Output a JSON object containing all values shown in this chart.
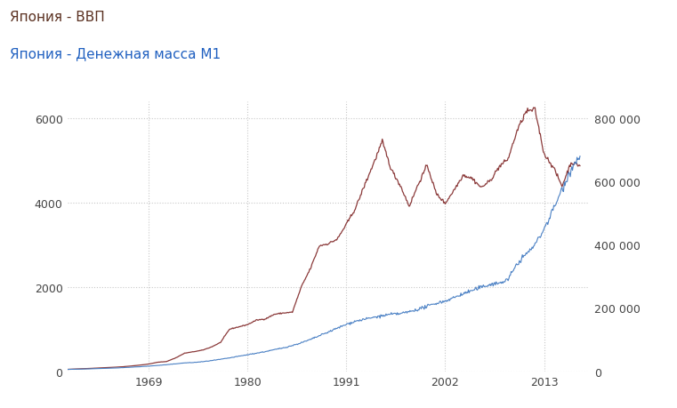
{
  "title_line1": "Япония - ВВП",
  "title_line2": "Япония - Денежная масса М1",
  "title_color1": "#5a3020",
  "title_color2": "#2060c0",
  "line_gdp_color": "#8b3a3a",
  "line_m1_color": "#4a80c4",
  "bg_color": "#ffffff",
  "grid_color": "#c8c8c8",
  "xlim": [
    1960,
    2018
  ],
  "ylim_left": [
    0,
    6400
  ],
  "ylim_right": [
    0,
    853333
  ],
  "xticks": [
    1969,
    1980,
    1991,
    2002,
    2013
  ],
  "yticks_left": [
    0,
    2000,
    4000,
    6000
  ],
  "yticks_right": [
    0,
    200000,
    400000,
    600000,
    800000
  ],
  "gdp_years": [
    1960,
    1961,
    1962,
    1963,
    1964,
    1965,
    1966,
    1967,
    1968,
    1969,
    1970,
    1971,
    1972,
    1973,
    1974,
    1975,
    1976,
    1977,
    1978,
    1979,
    1980,
    1981,
    1982,
    1983,
    1984,
    1985,
    1986,
    1987,
    1988,
    1989,
    1990,
    1991,
    1992,
    1993,
    1994,
    1995,
    1996,
    1997,
    1998,
    1999,
    2000,
    2001,
    2002,
    2003,
    2004,
    2005,
    2006,
    2007,
    2008,
    2009,
    2010,
    2011,
    2012,
    2013,
    2014,
    2015,
    2016,
    2017
  ],
  "gdp_values": [
    44,
    54,
    60,
    72,
    82,
    91,
    104,
    122,
    144,
    168,
    212,
    230,
    314,
    427,
    461,
    500,
    575,
    682,
    996,
    1050,
    1105,
    1211,
    1240,
    1350,
    1380,
    1399,
    2003,
    2432,
    2975,
    3025,
    3132,
    3483,
    3855,
    4395,
    4909,
    5449,
    4784,
    4408,
    3912,
    4432,
    4887,
    4213,
    3980,
    4302,
    4655,
    4572,
    4356,
    4515,
    4849,
    5035,
    5700,
    6157,
    6203,
    5156,
    4850,
    4389,
    4949,
    4872
  ],
  "m1_years": [
    1960,
    1961,
    1962,
    1963,
    1964,
    1965,
    1966,
    1967,
    1968,
    1969,
    1970,
    1971,
    1972,
    1973,
    1974,
    1975,
    1976,
    1977,
    1978,
    1979,
    1980,
    1981,
    1982,
    1983,
    1984,
    1985,
    1986,
    1987,
    1988,
    1989,
    1990,
    1991,
    1992,
    1993,
    1994,
    1995,
    1996,
    1997,
    1998,
    1999,
    2000,
    2001,
    2002,
    2003,
    2004,
    2005,
    2006,
    2007,
    2008,
    2009,
    2010,
    2011,
    2012,
    2013,
    2014,
    2015,
    2016,
    2017
  ],
  "m1_values": [
    5800,
    6400,
    7100,
    7900,
    8800,
    9800,
    11000,
    12500,
    14200,
    16100,
    18200,
    20500,
    23200,
    26200,
    27500,
    30000,
    33500,
    37500,
    42000,
    47000,
    52000,
    57000,
    62000,
    68000,
    74000,
    81000,
    90000,
    100000,
    112000,
    124000,
    136000,
    148000,
    158000,
    164000,
    170000,
    175000,
    180000,
    182000,
    188000,
    196000,
    205000,
    215000,
    222000,
    233000,
    245000,
    255000,
    265000,
    275000,
    278000,
    290000,
    340000,
    370000,
    400000,
    450000,
    510000,
    575000,
    640000,
    680000
  ]
}
